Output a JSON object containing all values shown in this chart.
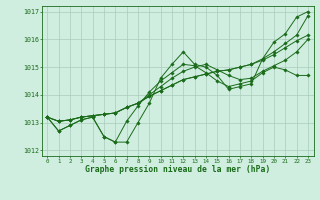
{
  "title": "Graphe pression niveau de la mer (hPa)",
  "bg_color": "#d0eee0",
  "line_color": "#1a6b1a",
  "grid_color": "#aaccbb",
  "xlim": [
    -0.5,
    23.5
  ],
  "ylim": [
    1011.8,
    1017.2
  ],
  "yticks": [
    1012,
    1013,
    1014,
    1015,
    1016,
    1017
  ],
  "xticks": [
    0,
    1,
    2,
    3,
    4,
    5,
    6,
    7,
    8,
    9,
    10,
    11,
    12,
    13,
    14,
    15,
    16,
    17,
    18,
    19,
    20,
    21,
    22,
    23
  ],
  "series": [
    [
      1013.2,
      1012.7,
      1012.9,
      1013.1,
      1013.2,
      1012.5,
      1012.3,
      1012.3,
      1013.0,
      1013.7,
      1014.6,
      1015.1,
      1015.55,
      1015.1,
      1015.0,
      1014.7,
      1014.2,
      1014.3,
      1014.4,
      1015.3,
      1015.9,
      1016.2,
      1016.8,
      1017.0
    ],
    [
      1013.2,
      1012.7,
      1012.9,
      1013.1,
      1013.2,
      1012.5,
      1012.3,
      1013.05,
      1013.6,
      1014.1,
      1014.5,
      1014.8,
      1015.1,
      1015.05,
      1014.8,
      1014.5,
      1014.3,
      1014.4,
      1014.5,
      1014.8,
      1015.0,
      1014.9,
      1014.7,
      1014.7
    ],
    [
      1013.2,
      1013.05,
      1013.1,
      1013.2,
      1013.25,
      1013.3,
      1013.35,
      1013.55,
      1013.7,
      1013.95,
      1014.15,
      1014.35,
      1014.55,
      1014.65,
      1014.75,
      1014.85,
      1014.9,
      1015.0,
      1015.1,
      1015.25,
      1015.45,
      1015.7,
      1015.95,
      1016.15
    ],
    [
      1013.2,
      1013.05,
      1013.1,
      1013.2,
      1013.25,
      1013.3,
      1013.35,
      1013.55,
      1013.7,
      1014.0,
      1014.3,
      1014.6,
      1014.85,
      1015.0,
      1015.1,
      1014.9,
      1014.7,
      1014.55,
      1014.6,
      1014.85,
      1015.05,
      1015.25,
      1015.55,
      1016.0
    ],
    [
      1013.2,
      1013.05,
      1013.1,
      1013.2,
      1013.25,
      1013.3,
      1013.35,
      1013.55,
      1013.7,
      1013.95,
      1014.15,
      1014.35,
      1014.55,
      1014.65,
      1014.75,
      1014.85,
      1014.9,
      1015.0,
      1015.1,
      1015.3,
      1015.55,
      1015.85,
      1016.15,
      1016.85
    ]
  ]
}
